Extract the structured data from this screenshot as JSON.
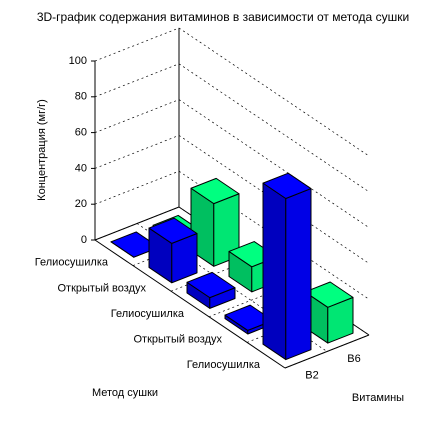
{
  "chart_data": {
    "type": "bar3d",
    "title": "3D-график содержания витаминов в зависимости от метода сушки",
    "zlabel": "Концентрация (мг/г)",
    "xlabel": "Витамины",
    "ylabel": "Метод сушки",
    "categories": [
      "Гелиосушилка",
      "Открытый воздух",
      "Гелиосушилка",
      "Открытый воздух",
      "Гелиосушилка"
    ],
    "series": [
      {
        "name": "B2",
        "color": "#0000ff",
        "values": [
          0,
          22,
          6,
          2,
          90
        ]
      },
      {
        "name": "B6",
        "color": "#00ff80",
        "values": [
          0,
          35,
          14,
          0,
          20
        ]
      }
    ],
    "zlim": [
      0,
      100
    ],
    "zticks": [
      0,
      20,
      40,
      60,
      80,
      100
    ],
    "grid": true
  }
}
